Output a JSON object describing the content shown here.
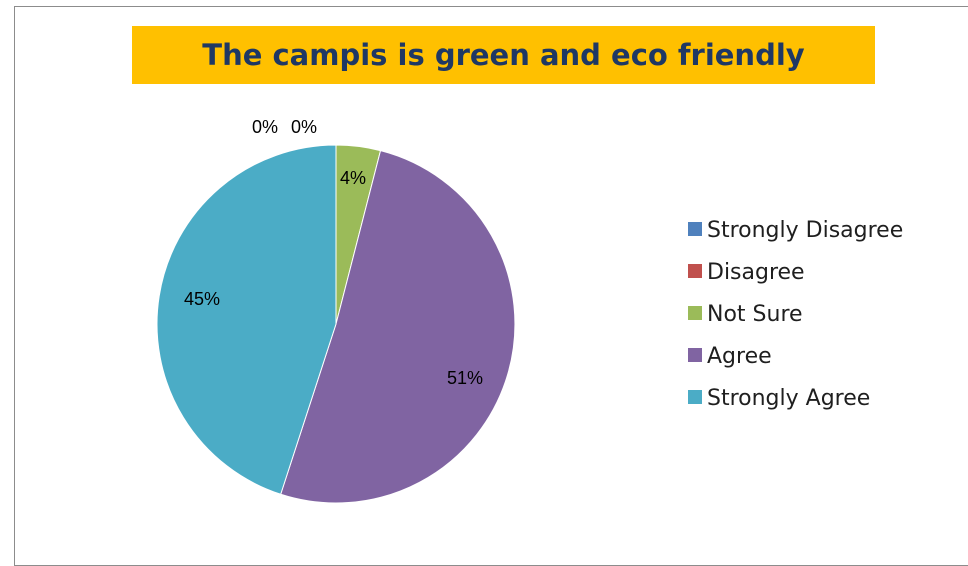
{
  "chart_data": {
    "type": "pie",
    "title": "The campis is green and eco friendly",
    "categories": [
      "Strongly Disagree",
      "Disagree",
      "Not Sure",
      "Agree",
      "Strongly Agree"
    ],
    "values": [
      0,
      0,
      4,
      51,
      45
    ],
    "data_labels": [
      "0%",
      "0%",
      "4%",
      "51%",
      "45%"
    ],
    "colors": [
      "#4f81bd",
      "#c0504d",
      "#9bbb59",
      "#8064a2",
      "#4bacc6"
    ],
    "legend_position": "right"
  }
}
